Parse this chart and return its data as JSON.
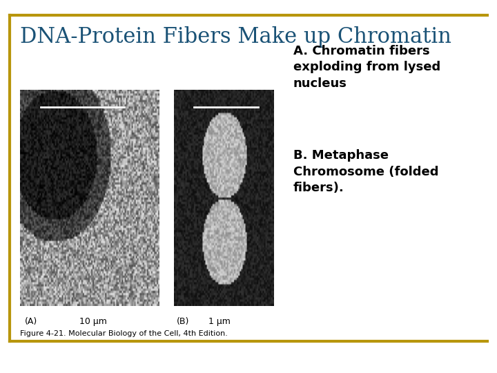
{
  "title": "DNA-Protein Fibers Make up Chromatin",
  "title_color": "#1a5276",
  "title_fontsize": 22,
  "bg_color": "#ffffff",
  "top_line_color": "#b8960c",
  "bottom_line_color": "#b8960c",
  "text_A": "A. Chromatin fibers\nexploding from lysed\nnucleus",
  "text_B": "B. Metaphase\nChromosome (folded\nfibers).",
  "text_fontsize": 13,
  "caption": "Figure 4-21. Molecular Biology of the Cell, 4th Edition.",
  "caption_fontsize": 8,
  "label_A": "(A)",
  "label_B": "(B)",
  "scale_A": "10 μm",
  "scale_B": "1 μm",
  "label_fontsize": 9,
  "image_A_path": null,
  "image_B_path": null
}
